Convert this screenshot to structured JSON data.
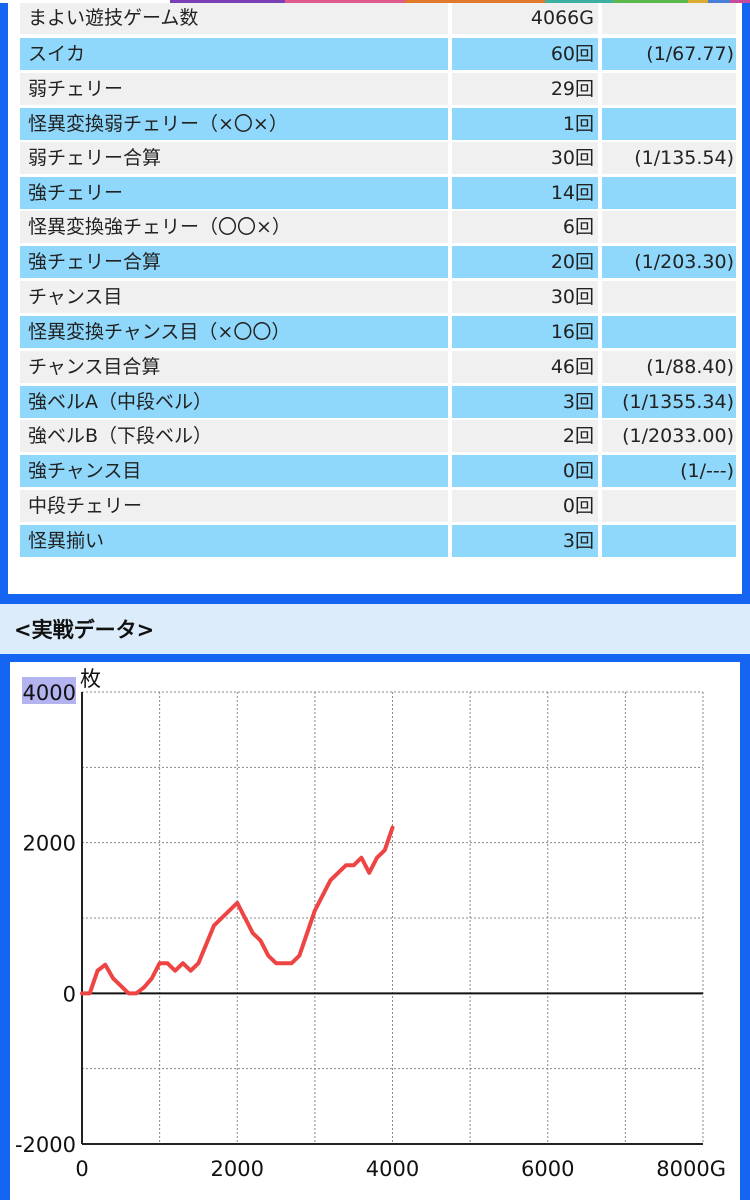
{
  "top_strip_colors": [
    "#ffffff",
    "#7b3fb5",
    "#e05a8c",
    "#e07a2a",
    "#3bb0a0",
    "#5ab84c",
    "#d9a930",
    "#4a7fd6",
    "#c94a9a"
  ],
  "stats": {
    "rows": [
      {
        "name": "まよい遊技ゲーム数",
        "count": "4066G",
        "prob": "",
        "style": "gray"
      },
      {
        "name": "スイカ",
        "count": "60回",
        "prob": "(1/67.77)",
        "style": "blue"
      },
      {
        "name": "弱チェリー",
        "count": "29回",
        "prob": "",
        "style": "gray"
      },
      {
        "name": "怪異変換弱チェリー（×〇×）",
        "count": "1回",
        "prob": "",
        "style": "blue"
      },
      {
        "name": "弱チェリー合算",
        "count": "30回",
        "prob": "(1/135.54)",
        "style": "gray"
      },
      {
        "name": "強チェリー",
        "count": "14回",
        "prob": "",
        "style": "blue"
      },
      {
        "name": "怪異変換強チェリー（〇〇×）",
        "count": "6回",
        "prob": "",
        "style": "gray"
      },
      {
        "name": "強チェリー合算",
        "count": "20回",
        "prob": "(1/203.30)",
        "style": "blue"
      },
      {
        "name": "チャンス目",
        "count": "30回",
        "prob": "",
        "style": "gray"
      },
      {
        "name": "怪異変換チャンス目（×〇〇）",
        "count": "16回",
        "prob": "",
        "style": "blue"
      },
      {
        "name": "チャンス目合算",
        "count": "46回",
        "prob": "(1/88.40)",
        "style": "gray"
      },
      {
        "name": "強ベルA（中段ベル）",
        "count": "3回",
        "prob": "(1/1355.34)",
        "style": "blue"
      },
      {
        "name": "強ベルB（下段ベル）",
        "count": "2回",
        "prob": "(1/2033.00)",
        "style": "gray"
      },
      {
        "name": "強チャンス目",
        "count": "0回",
        "prob": "(1/---)",
        "style": "blue"
      },
      {
        "name": "中段チェリー",
        "count": "0回",
        "prob": "",
        "style": "gray"
      },
      {
        "name": "怪異揃い",
        "count": "3回",
        "prob": "",
        "style": "blue"
      }
    ]
  },
  "section": {
    "title": "<実戦データ>"
  },
  "chart_data": {
    "type": "line",
    "title": "",
    "ylabel": "枚",
    "xlabel": "",
    "xlim": [
      0,
      8000
    ],
    "ylim": [
      -2000,
      4000
    ],
    "x_ticks": [
      "0",
      "2000",
      "4000",
      "6000",
      "8000G"
    ],
    "y_ticks": [
      "-2000",
      "0",
      "2000",
      "4000"
    ],
    "grid": true,
    "line_color": "#ee4444",
    "series": [
      {
        "x": [
          0,
          100,
          200,
          300,
          400,
          500,
          600,
          700,
          800,
          900,
          1000,
          1100,
          1200,
          1300,
          1400,
          1500,
          1600,
          1700,
          1800,
          1900,
          2000,
          2100,
          2200,
          2300,
          2400,
          2500,
          2600,
          2700,
          2800,
          2900,
          3000,
          3100,
          3200,
          3300,
          3400,
          3500,
          3600,
          3700,
          3800,
          3900,
          4000
        ],
        "y": [
          0,
          0,
          300,
          380,
          200,
          100,
          0,
          0,
          80,
          200,
          400,
          400,
          300,
          400,
          300,
          400,
          650,
          900,
          1000,
          1100,
          1200,
          1000,
          800,
          700,
          500,
          400,
          400,
          400,
          500,
          800,
          1100,
          1300,
          1500,
          1600,
          1700,
          1700,
          1800,
          1600,
          1800,
          1900,
          2200
        ]
      }
    ]
  }
}
